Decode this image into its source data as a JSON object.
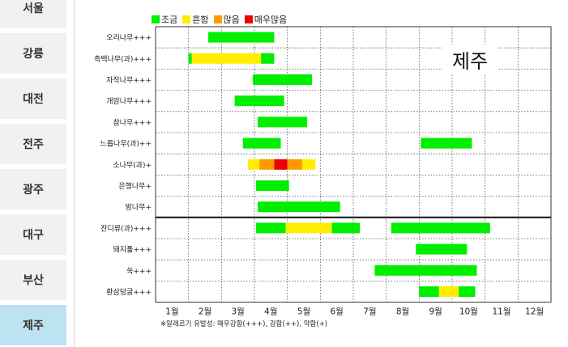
{
  "sidebar": {
    "cities": [
      "서울",
      "강릉",
      "대전",
      "전주",
      "광주",
      "대구",
      "부산",
      "제주"
    ],
    "active": "제주"
  },
  "colors": {
    "low": "#00ee00",
    "medium": "#ffee00",
    "high": "#ff9900",
    "very_high": "#ee0000"
  },
  "chart_data": {
    "type": "gantt",
    "title": "제주",
    "legend": [
      "조금",
      "흔함",
      "많음",
      "매우많음"
    ],
    "legend_position": "top-left",
    "months": [
      "1월",
      "2월",
      "3월",
      "4월",
      "5월",
      "6월",
      "7월",
      "8월",
      "9월",
      "10월",
      "11월",
      "12월"
    ],
    "x_unit": "month",
    "xlim": [
      0,
      12
    ],
    "rows": [
      {
        "label": "오리나무+++",
        "segments": [
          {
            "start": 1.6,
            "end": 3.6,
            "level": "low"
          }
        ]
      },
      {
        "label": "측백나무(과)+++",
        "segments": [
          {
            "start": 1.0,
            "end": 1.1,
            "level": "low"
          },
          {
            "start": 1.1,
            "end": 3.2,
            "level": "medium"
          },
          {
            "start": 3.2,
            "end": 3.6,
            "level": "low"
          }
        ]
      },
      {
        "label": "자작나무+++",
        "segments": [
          {
            "start": 2.95,
            "end": 4.75,
            "level": "low"
          }
        ]
      },
      {
        "label": "개암나무+++",
        "segments": [
          {
            "start": 2.4,
            "end": 3.9,
            "level": "low"
          }
        ]
      },
      {
        "label": "참나무+++",
        "segments": [
          {
            "start": 3.1,
            "end": 4.6,
            "level": "low"
          }
        ]
      },
      {
        "label": "느릅나무(과)++",
        "segments": [
          {
            "start": 2.65,
            "end": 3.8,
            "level": "low"
          },
          {
            "start": 8.05,
            "end": 9.6,
            "level": "low"
          }
        ]
      },
      {
        "label": "소나무(과)+",
        "segments": [
          {
            "start": 2.8,
            "end": 3.15,
            "level": "medium"
          },
          {
            "start": 3.15,
            "end": 3.6,
            "level": "high"
          },
          {
            "start": 3.6,
            "end": 4.0,
            "level": "very_high"
          },
          {
            "start": 4.0,
            "end": 4.45,
            "level": "high"
          },
          {
            "start": 4.45,
            "end": 4.85,
            "level": "medium"
          }
        ]
      },
      {
        "label": "은행나무+",
        "segments": [
          {
            "start": 3.05,
            "end": 4.05,
            "level": "low"
          }
        ]
      },
      {
        "label": "밤나무+",
        "segments": [
          {
            "start": 3.1,
            "end": 5.6,
            "level": "low"
          }
        ]
      },
      {
        "label": "잔디류(과)+++",
        "segments": [
          {
            "start": 3.05,
            "end": 3.95,
            "level": "low"
          },
          {
            "start": 3.95,
            "end": 5.35,
            "level": "medium"
          },
          {
            "start": 5.35,
            "end": 6.2,
            "level": "low"
          },
          {
            "start": 7.15,
            "end": 10.15,
            "level": "low"
          }
        ]
      },
      {
        "label": "돼지풀+++",
        "segments": [
          {
            "start": 7.9,
            "end": 9.45,
            "level": "low"
          }
        ]
      },
      {
        "label": "쑥+++",
        "segments": [
          {
            "start": 6.65,
            "end": 9.75,
            "level": "low"
          }
        ]
      },
      {
        "label": "환삼덩굴+++",
        "segments": [
          {
            "start": 8.0,
            "end": 8.6,
            "level": "low"
          },
          {
            "start": 8.6,
            "end": 9.2,
            "level": "medium"
          },
          {
            "start": 9.2,
            "end": 9.7,
            "level": "low"
          }
        ]
      }
    ],
    "separator_after_row": 9,
    "grid": true
  },
  "footnote": "※알레르기 유발성: 매우강함(+++), 강함(++), 약함(+)"
}
